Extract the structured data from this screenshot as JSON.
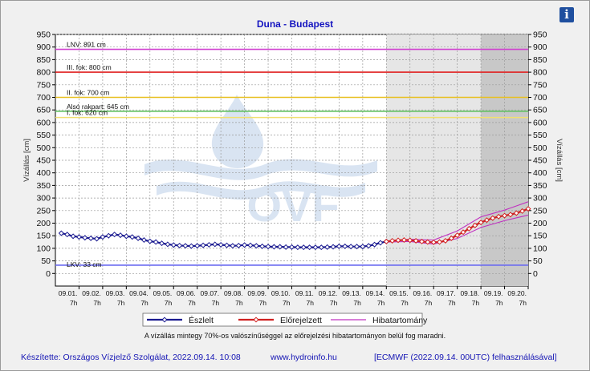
{
  "header": {
    "title": "Duna - Budapest",
    "info_icon": "info-icon"
  },
  "chart_data": {
    "type": "line",
    "title": "Duna - Budapest",
    "ylabel": "Vízállás [cm]",
    "ylabel_right": "Vízállás [cm]",
    "ylim": [
      -50,
      950
    ],
    "yticks": [
      0,
      50,
      100,
      150,
      200,
      250,
      300,
      350,
      400,
      450,
      500,
      550,
      600,
      650,
      700,
      750,
      800,
      850,
      900,
      950
    ],
    "x_date_labels": [
      "09.01.",
      "09.02.",
      "09.03.",
      "09.04.",
      "09.05.",
      "09.06.",
      "09.07.",
      "09.08.",
      "09.09.",
      "09.10.",
      "09.11.",
      "09.12.",
      "09.13.",
      "09.14.",
      "09.15.",
      "09.16.",
      "09.17.",
      "09.18.",
      "09.19.",
      "09.20."
    ],
    "x_hour_label": "7h",
    "grid": true,
    "legend": "bottom",
    "reference_lines": [
      {
        "label": "LNV: 891 cm",
        "value": 891,
        "color": "#d040d0"
      },
      {
        "label": "III. fok: 800 cm",
        "value": 800,
        "color": "#e02020"
      },
      {
        "label": "II. fok: 700 cm",
        "value": 700,
        "color": "#e8c020"
      },
      {
        "label": "Alsó rakpart: 645 cm",
        "value": 645,
        "color": "#60c060"
      },
      {
        "label": "I. fok: 620 cm",
        "value": 620,
        "color": "#f0e070"
      },
      {
        "label": "LKV: 33 cm",
        "value": 33,
        "color": "#6a6af0"
      }
    ],
    "series": [
      {
        "name": "Észlelt",
        "color": "#1a1a90",
        "x": [
          0.25,
          0.5,
          0.75,
          1,
          1.25,
          1.5,
          1.75,
          2,
          2.25,
          2.5,
          2.75,
          3,
          3.25,
          3.5,
          3.75,
          4,
          4.25,
          4.5,
          4.75,
          5,
          5.25,
          5.5,
          5.75,
          6,
          6.25,
          6.5,
          6.75,
          7,
          7.25,
          7.5,
          7.75,
          8,
          8.25,
          8.5,
          8.75,
          9,
          9.25,
          9.5,
          9.75,
          10,
          10.25,
          10.5,
          10.75,
          11,
          11.25,
          11.5,
          11.75,
          12,
          12.25,
          12.5,
          12.75,
          13,
          13.25,
          13.5,
          13.75,
          14
        ],
        "values": [
          160,
          155,
          148,
          145,
          142,
          140,
          138,
          145,
          150,
          155,
          152,
          148,
          145,
          140,
          133,
          128,
          125,
          120,
          116,
          113,
          111,
          110,
          109,
          110,
          112,
          114,
          116,
          114,
          112,
          110,
          111,
          113,
          112,
          110,
          108,
          107,
          106,
          106,
          105,
          105,
          104,
          104,
          104,
          104,
          104,
          105,
          106,
          108,
          108,
          107,
          107,
          107,
          110,
          115,
          122,
          127
        ]
      },
      {
        "name": "Előrejelzett",
        "color": "#d02020",
        "x": [
          14,
          14.25,
          14.5,
          14.75,
          15,
          15.25,
          15.5,
          15.75,
          16,
          16.25,
          16.5,
          16.75,
          17,
          17.25,
          17.5,
          17.75,
          18,
          18.25,
          18.5,
          18.75,
          19,
          19.25,
          19.5,
          19.75,
          20
        ],
        "values": [
          127,
          130,
          132,
          133,
          132,
          130,
          127,
          125,
          124,
          125,
          130,
          140,
          152,
          164,
          178,
          191,
          203,
          212,
          220,
          226,
          230,
          234,
          240,
          248,
          257
        ]
      },
      {
        "name": "Hibatartomány",
        "color": "#c030c0",
        "x": [
          14,
          15,
          16,
          17,
          18,
          19,
          20
        ],
        "upper": [
          129,
          136,
          133,
          169,
          225,
          252,
          285
        ],
        "lower": [
          125,
          127,
          117,
          139,
          183,
          210,
          232
        ]
      }
    ],
    "watermark": "OVF"
  },
  "legend": {
    "observed": "Észlelt",
    "forecast": "Előrejelzett",
    "error_band": "Hibatartomány"
  },
  "note": "A vízállás mintegy 70%-os valószínűséggel az előrejelzési hibatartományon belül fog maradni.",
  "footer": {
    "made_by": "Készítette: Országos Vízjelző Szolgálat, 2022.09.14. 10:08",
    "url": "www.hydroinfo.hu",
    "model": "[ECMWF (2022.09.14. 00UTC) felhasználásával]"
  }
}
